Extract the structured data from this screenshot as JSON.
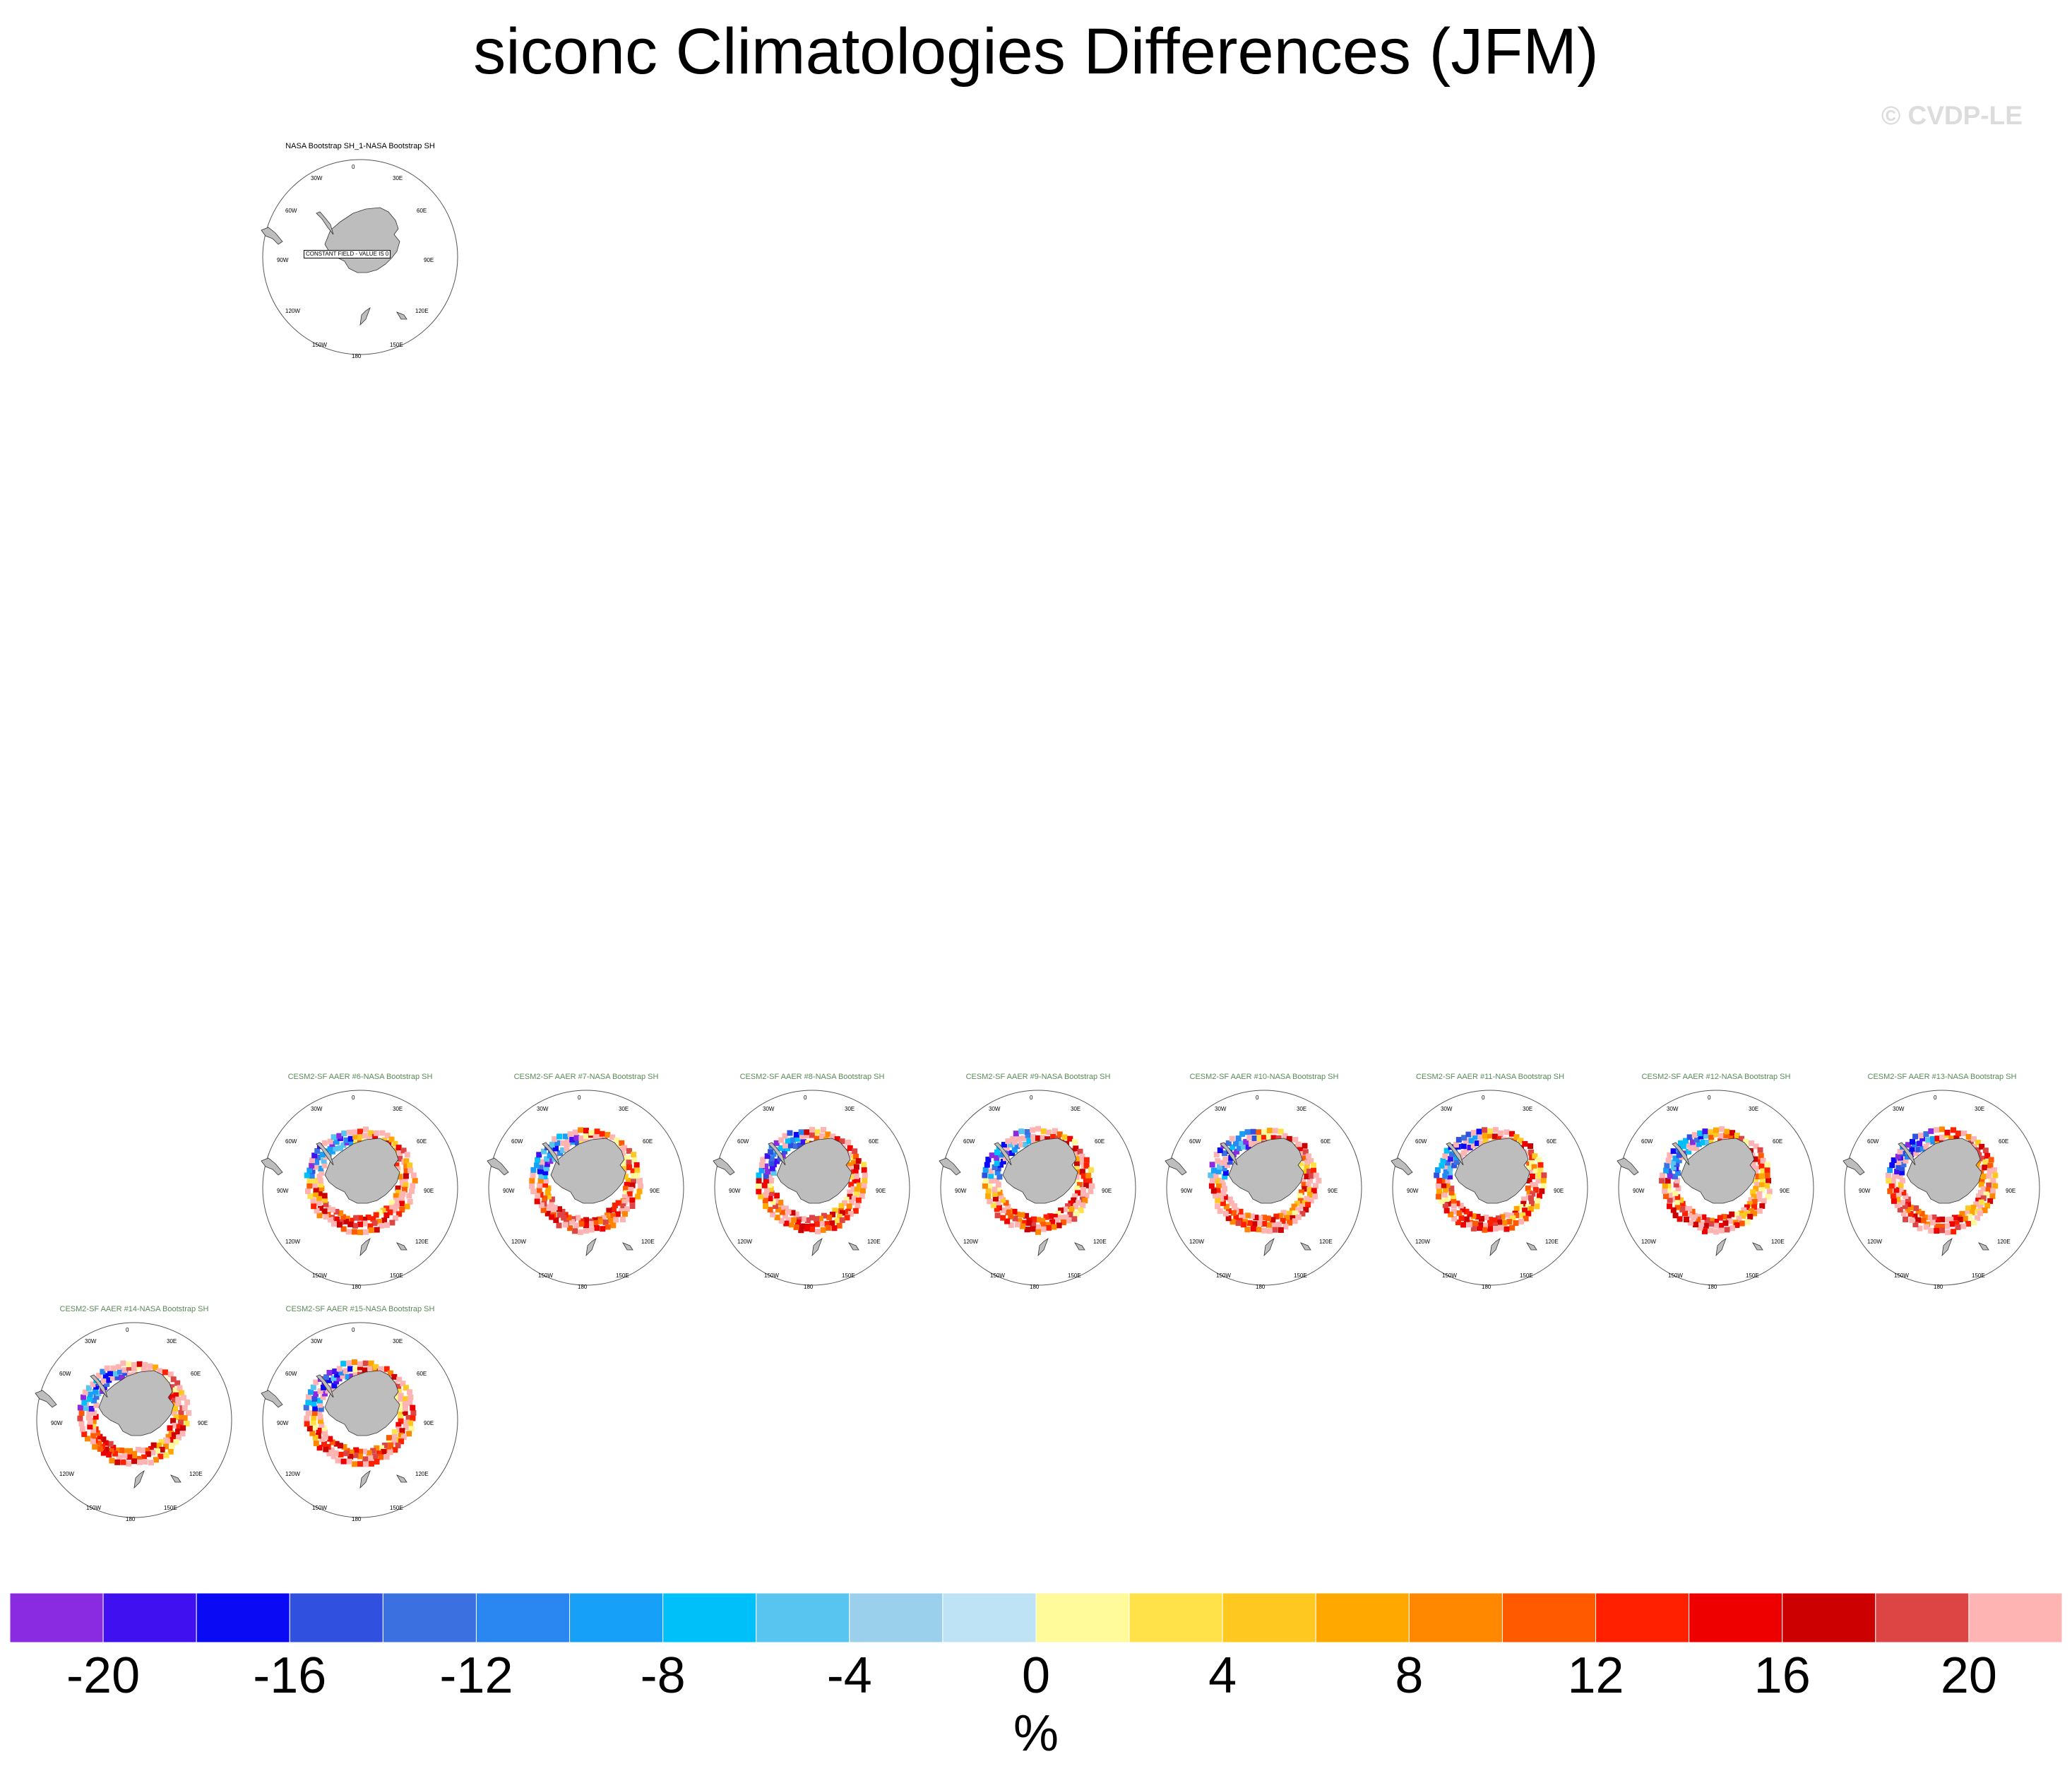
{
  "title": "siconc Climatologies Differences (JFM)",
  "watermark": "© CVDP-LE",
  "colors": {
    "land": "#bdbdbd",
    "title_obs": "#000000",
    "title_model": "#5a8a5a"
  },
  "panel_labels": {
    "0": "0",
    "30E": "30E",
    "60E": "60E",
    "90E": "90E",
    "120E": "120E",
    "150E": "150E",
    "180": "180",
    "150W": "150W",
    "120W": "120W",
    "90W": "90W",
    "60W": "60W",
    "30W": "30W"
  },
  "panels": [
    {
      "title": "NASA Bootstrap SH_1-NASA Bootstrap SH",
      "kind": "obs",
      "note": "CONSTANT FIELD - VALUE IS 0"
    },
    {
      "title": "CESM2-SF AAER #6-NASA Bootstrap SH",
      "kind": "model"
    },
    {
      "title": "CESM2-SF AAER #7-NASA Bootstrap SH",
      "kind": "model"
    },
    {
      "title": "CESM2-SF AAER #8-NASA Bootstrap SH",
      "kind": "model"
    },
    {
      "title": "CESM2-SF AAER #9-NASA Bootstrap SH",
      "kind": "model"
    },
    {
      "title": "CESM2-SF AAER #10-NASA Bootstrap SH",
      "kind": "model"
    },
    {
      "title": "CESM2-SF AAER #11-NASA Bootstrap SH",
      "kind": "model"
    },
    {
      "title": "CESM2-SF AAER #12-NASA Bootstrap SH",
      "kind": "model"
    },
    {
      "title": "CESM2-SF AAER #13-NASA Bootstrap SH",
      "kind": "model"
    },
    {
      "title": "CESM2-SF AAER #14-NASA Bootstrap SH",
      "kind": "model"
    },
    {
      "title": "CESM2-SF AAER #15-NASA Bootstrap SH",
      "kind": "model"
    }
  ],
  "colorbar": {
    "colors": [
      "#8a2be2",
      "#4010f0",
      "#0a0af5",
      "#3050e0",
      "#3a70e0",
      "#2a86f0",
      "#16a0f8",
      "#00c0fa",
      "#58c4f0",
      "#9ad0ec",
      "#bde3f4",
      "#fffa9a",
      "#ffe14a",
      "#ffc820",
      "#ffa800",
      "#ff8800",
      "#ff5a00",
      "#ff2000",
      "#ee0000",
      "#cc0000",
      "#dd4444",
      "#ffb4b4"
    ],
    "ticks": [
      "-20",
      "-16",
      "-12",
      "-8",
      "-4",
      "0",
      "4",
      "8",
      "12",
      "16",
      "20"
    ],
    "units": "%"
  }
}
